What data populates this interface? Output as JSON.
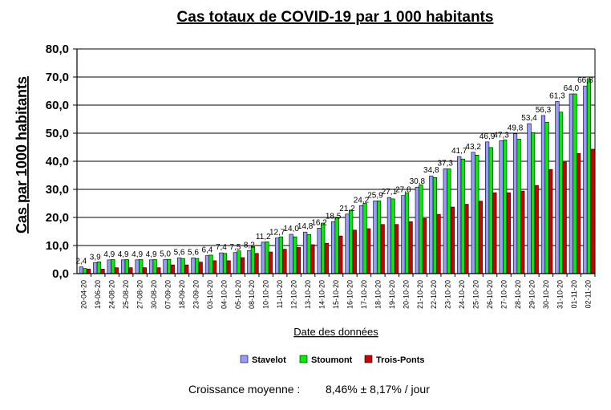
{
  "chart_data": {
    "type": "bar",
    "title": "Cas totaux de COVID-19 par 1 000 habitants",
    "xlabel": "Date des données",
    "ylabel": "Cas par 1000 habitants",
    "ylim": [
      0,
      80
    ],
    "yticks": [
      "0,0",
      "10,0",
      "20,0",
      "30,0",
      "40,0",
      "50,0",
      "60,0",
      "70,0",
      "80,0"
    ],
    "grid": true,
    "legend_position": "bottom",
    "categories": [
      "20-04-20",
      "19-06-20",
      "24-08-20",
      "25-08-20",
      "27-08-20",
      "30-08-20",
      "07-09-20",
      "18-09-20",
      "23-09-20",
      "03-10-20",
      "04-10-20",
      "05-10-20",
      "08-10-20",
      "10-10-20",
      "11-10-20",
      "12-10-20",
      "13-10-20",
      "14-10-20",
      "15-10-20",
      "16-10-20",
      "17-10-20",
      "18-10-20",
      "19-10-20",
      "20-10-20",
      "21-10-20",
      "22-10-20",
      "23-10-20",
      "24-10-20",
      "25-10-20",
      "26-10-20",
      "27-10-20",
      "28-10-20",
      "29-10-20",
      "30-10-20",
      "31-10-20",
      "01-11-20",
      "02-11-20"
    ],
    "series": [
      {
        "name": "Stavelot",
        "color": "#9999ff",
        "values": [
          2.4,
          3.9,
          4.9,
          4.9,
          4.9,
          4.9,
          5.0,
          5.6,
          5.6,
          6.4,
          7.4,
          7.5,
          8.2,
          11.2,
          12.7,
          14.0,
          14.8,
          16.2,
          18.5,
          21.2,
          24.2,
          25.9,
          27.1,
          27.8,
          30.8,
          34.8,
          37.3,
          41.7,
          43.2,
          46.9,
          47.3,
          49.8,
          53.4,
          56.3,
          61.3,
          64.0,
          66.8
        ],
        "labels": [
          "2,4",
          "3,9",
          "4,9",
          "4,9",
          "4,9",
          "4,9",
          "5,0",
          "5,6",
          "5,6",
          "6,4",
          "7,4",
          "7,5",
          "8,2",
          "11,2",
          "12,7",
          "14,0",
          "14,8",
          "16,2",
          "18,5",
          "21,2",
          "24,2",
          "25,9",
          "27,1",
          "27,8",
          "30,8",
          "34,8",
          "37,3",
          "41,7",
          "43,2",
          "46,9",
          "47,3",
          "49,8",
          "53,4",
          "56,3",
          "61,3",
          "64,0",
          "66,8"
        ]
      },
      {
        "name": "Stoumont",
        "color": "#00ee00",
        "values": [
          1.8,
          4.2,
          5.0,
          5.0,
          5.0,
          5.0,
          5.1,
          5.4,
          5.4,
          6.6,
          7.2,
          8.1,
          9.6,
          11.3,
          13.1,
          13.1,
          13.9,
          18.0,
          19.8,
          22.6,
          25.0,
          25.9,
          26.6,
          28.7,
          31.6,
          34.2,
          37.3,
          40.8,
          42.2,
          44.9,
          47.6,
          47.9,
          50.2,
          53.9,
          57.5,
          64.0,
          69.4
        ]
      },
      {
        "name": "Trois-Ponts",
        "color": "#cc0000",
        "values": [
          1.6,
          1.6,
          2.1,
          2.1,
          2.1,
          2.1,
          3.1,
          3.1,
          4.1,
          4.6,
          4.6,
          5.7,
          7.2,
          7.7,
          8.7,
          9.3,
          10.3,
          10.8,
          13.4,
          15.5,
          16.0,
          17.5,
          17.5,
          18.5,
          19.6,
          21.1,
          23.7,
          24.7,
          25.8,
          28.8,
          28.8,
          29.4,
          31.4,
          37.1,
          39.7,
          42.8,
          44.3
        ]
      }
    ]
  },
  "footer": {
    "label": "Croissance moyenne :",
    "value": "8,46%  ± 8,17% / jour"
  }
}
